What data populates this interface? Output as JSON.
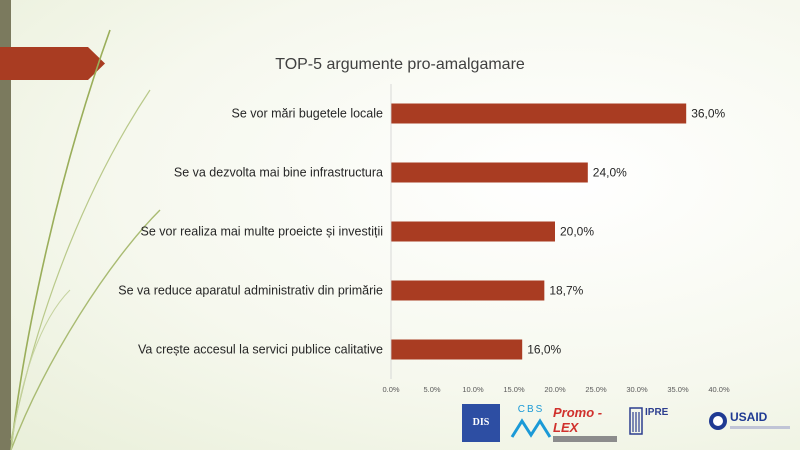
{
  "chart_data": {
    "type": "bar",
    "orientation": "horizontal",
    "title": "TOP-5 argumente  pro-amalgamare",
    "categories": [
      "Se vor mări bugetele locale",
      "Se va dezvolta mai bine infrastructura",
      "Se vor realiza mai multe proeicte și investiții",
      "Se va reduce aparatul administrativ din primărie",
      "Va crește accesul la servici publice calitative"
    ],
    "values": [
      36.0,
      24.0,
      20.0,
      18.7,
      16.0
    ],
    "value_labels": [
      "36,0%",
      "24,0%",
      "20,0%",
      "18,7%",
      "16,0%"
    ],
    "xlim": [
      0,
      40
    ],
    "x_ticks": [
      0,
      5,
      10,
      15,
      20,
      25,
      30,
      35,
      40
    ],
    "x_tick_labels": [
      "0.0%",
      "5.0%",
      "10.0%",
      "15.0%",
      "20.0%",
      "25.0%",
      "30.0%",
      "35.0%",
      "40.0%"
    ],
    "bar_color": "#a93c22",
    "grid": false,
    "legend": "none"
  },
  "logos": {
    "dis": "DIS",
    "cbs": "CBS",
    "promolex": "Promo - LEX",
    "ipre": "IPRE",
    "usaid": "USAID"
  },
  "colors": {
    "accent": "#a93c22",
    "band": "#7b7a5e"
  }
}
